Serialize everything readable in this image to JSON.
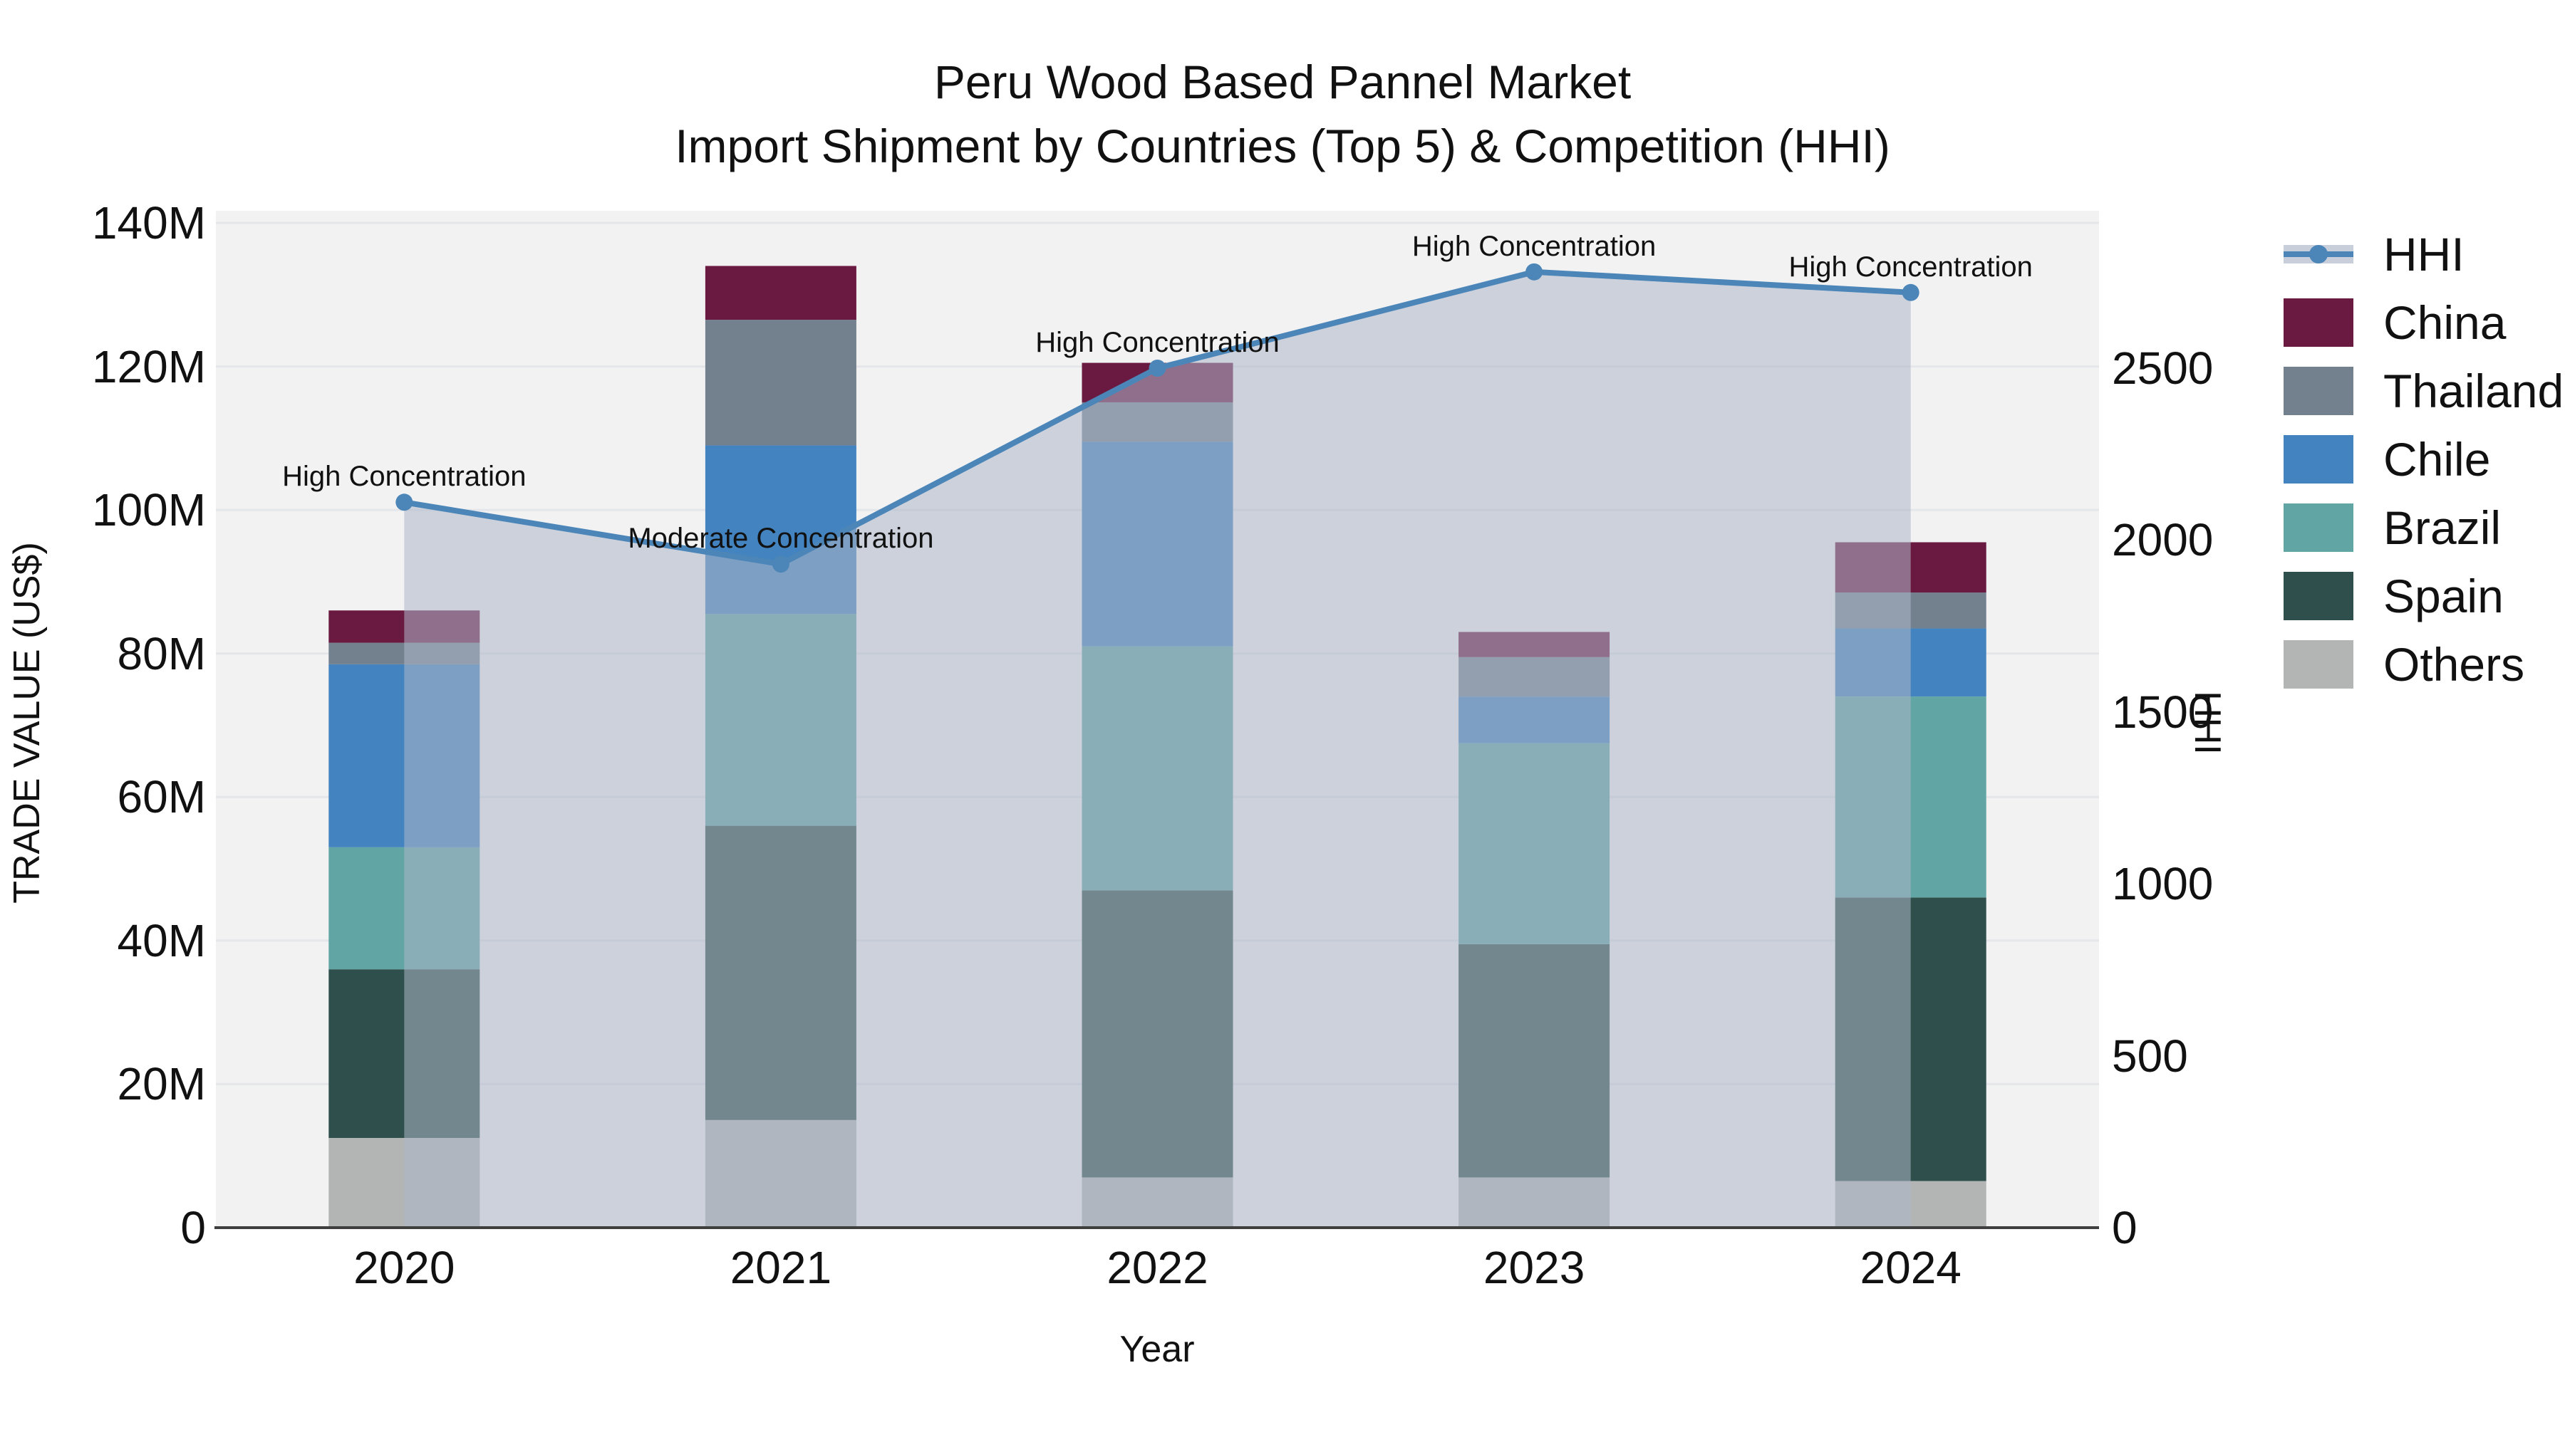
{
  "title": {
    "line1": "Peru Wood Based Pannel Market",
    "line2": "Import Shipment by Countries (Top 5) & Competition (HHI)"
  },
  "axes": {
    "x_label": "Year",
    "y_left_label": "TRADE VALUE (US$)",
    "y_right_label": "HHI"
  },
  "legend": {
    "items": [
      {
        "id": "hhi",
        "label": "HHI"
      },
      {
        "id": "china",
        "label": "China"
      },
      {
        "id": "thailand",
        "label": "Thailand"
      },
      {
        "id": "chile",
        "label": "Chile"
      },
      {
        "id": "brazil",
        "label": "Brazil"
      },
      {
        "id": "spain",
        "label": "Spain"
      },
      {
        "id": "others",
        "label": "Others"
      }
    ]
  },
  "chart_data": {
    "type": "bar",
    "subtype": "stacked bars (left axis, trade value US$ millions) + HHI line with area fill (right axis)",
    "categories": [
      "2020",
      "2021",
      "2022",
      "2023",
      "2024"
    ],
    "stack_order_bottom_to_top": [
      "Others",
      "Spain",
      "Brazil",
      "Chile",
      "Thailand",
      "China"
    ],
    "series": [
      {
        "name": "China",
        "type": "bar",
        "color": "#6a1a40",
        "values": [
          4.5,
          7.5,
          5.5,
          3.5,
          7.0
        ]
      },
      {
        "name": "Thailand",
        "type": "bar",
        "color": "#73808e",
        "values": [
          3.0,
          17.5,
          5.5,
          5.5,
          5.0
        ]
      },
      {
        "name": "Chile",
        "type": "bar",
        "color": "#4383bf",
        "values": [
          25.5,
          23.5,
          28.5,
          6.5,
          9.5
        ]
      },
      {
        "name": "Brazil",
        "type": "bar",
        "color": "#61a5a4",
        "values": [
          17.0,
          29.5,
          34.0,
          28.0,
          28.0
        ]
      },
      {
        "name": "Spain",
        "type": "bar",
        "color": "#2e4f4b",
        "values": [
          23.5,
          41.0,
          40.0,
          32.5,
          39.5
        ]
      },
      {
        "name": "Others",
        "type": "bar",
        "color": "#b2b5b4",
        "values": [
          12.5,
          15.0,
          7.0,
          7.0,
          6.5
        ]
      }
    ],
    "bar_totals_millions": [
      86.0,
      134.0,
      120.5,
      83.0,
      95.5
    ],
    "line": {
      "name": "HHI",
      "color": "#4c86b8",
      "area_fill": "rgba(173,183,201,0.55)",
      "legend_band_color": "#c9cfda",
      "values": [
        2110,
        1930,
        2500,
        2780,
        2720
      ]
    },
    "annotations": [
      {
        "category": "2020",
        "label": "High Concentration"
      },
      {
        "category": "2021",
        "label": "Moderate Concentration"
      },
      {
        "category": "2022",
        "label": "High Concentration"
      },
      {
        "category": "2023",
        "label": "High Concentration"
      },
      {
        "category": "2024",
        "label": "High Concentration"
      }
    ],
    "y_left": {
      "label": "TRADE VALUE (US$)",
      "unit": "millions US$",
      "min": 0,
      "max": 140,
      "tick_values": [
        0,
        20,
        40,
        60,
        80,
        100,
        120,
        140
      ],
      "tick_labels": [
        "0",
        "20M",
        "40M",
        "60M",
        "80M",
        "100M",
        "120M",
        "140M"
      ]
    },
    "y_right": {
      "label": "HHI",
      "min": 0,
      "max": 2500,
      "tick_values": [
        0,
        500,
        1000,
        1500,
        2000,
        2500
      ],
      "tick_labels": [
        "0",
        "500",
        "1000",
        "1500",
        "2000",
        "2500"
      ]
    },
    "grid": "horizontal",
    "legend_position": "right",
    "plot_bg": "#f2f2f3",
    "grid_color": "#e4e6e9",
    "baseline_color": "#3f3f3f"
  }
}
